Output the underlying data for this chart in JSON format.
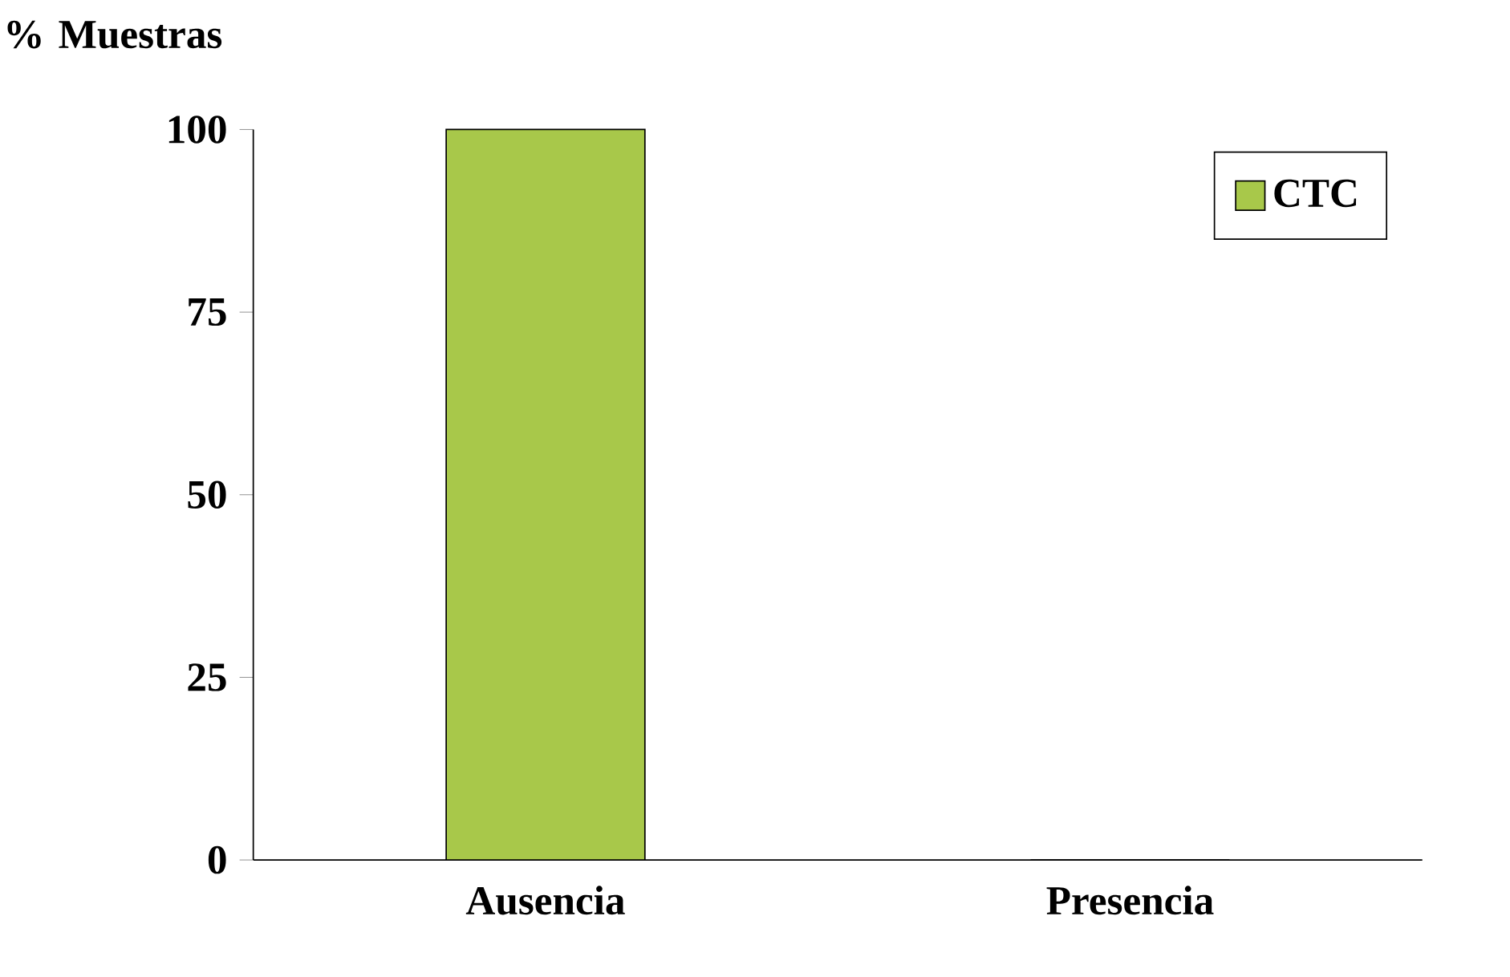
{
  "chart_data": {
    "type": "bar",
    "ylabel": "% Muestras",
    "categories": [
      "Ausencia",
      "Presencia"
    ],
    "series": [
      {
        "name": "CTC",
        "color": "#a8c84a",
        "values": [
          100,
          0
        ]
      }
    ],
    "ylim": [
      0,
      100
    ],
    "yticks": [
      0,
      25,
      50,
      75,
      100
    ],
    "legend": "top right"
  }
}
